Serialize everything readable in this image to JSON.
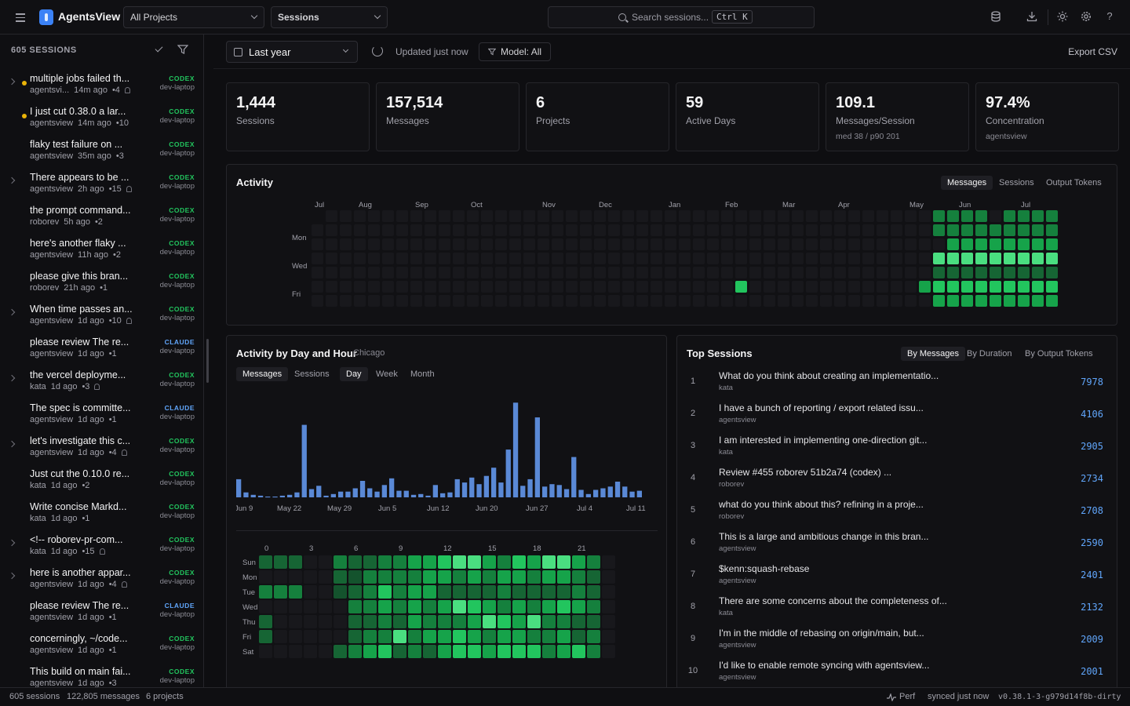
{
  "app": {
    "title": "AgentsView"
  },
  "header": {
    "project_select": "All Projects",
    "view_select": "Sessions",
    "search_placeholder": "Search sessions...",
    "search_shortcut": "Ctrl K"
  },
  "sidebar": {
    "count_label": "605 SESSIONS",
    "sessions": [
      {
        "title": "multiple jobs failed th...",
        "project": "agentsvi...",
        "age": "14m ago",
        "msgs": "•4",
        "agent": "CODEX",
        "host": "dev-laptop",
        "expand": true,
        "dot": true,
        "person": true
      },
      {
        "title": "I just cut 0.38.0 a lar...",
        "project": "agentsview",
        "age": "14m ago",
        "msgs": "•10",
        "agent": "CODEX",
        "host": "dev-laptop",
        "expand": false,
        "dot": true,
        "person": false
      },
      {
        "title": "flaky test failure on ...",
        "project": "agentsview",
        "age": "35m ago",
        "msgs": "•3",
        "agent": "CODEX",
        "host": "dev-laptop",
        "expand": false,
        "dot": false,
        "person": false
      },
      {
        "title": "There appears to be ...",
        "project": "agentsview",
        "age": "2h ago",
        "msgs": "•15",
        "agent": "CODEX",
        "host": "dev-laptop",
        "expand": true,
        "dot": false,
        "person": true
      },
      {
        "title": "the prompt command...",
        "project": "roborev",
        "age": "5h ago",
        "msgs": "•2",
        "agent": "CODEX",
        "host": "dev-laptop",
        "expand": false,
        "dot": false,
        "person": false
      },
      {
        "title": "here's another flaky ...",
        "project": "agentsview",
        "age": "11h ago",
        "msgs": "•2",
        "agent": "CODEX",
        "host": "dev-laptop",
        "expand": false,
        "dot": false,
        "person": false
      },
      {
        "title": "please give this bran...",
        "project": "roborev",
        "age": "21h ago",
        "msgs": "•1",
        "agent": "CODEX",
        "host": "dev-laptop",
        "expand": false,
        "dot": false,
        "person": false
      },
      {
        "title": "When time passes an...",
        "project": "agentsview",
        "age": "1d ago",
        "msgs": "•10",
        "agent": "CODEX",
        "host": "dev-laptop",
        "expand": true,
        "dot": false,
        "person": true
      },
      {
        "title": "please review The re...",
        "project": "agentsview",
        "age": "1d ago",
        "msgs": "•1",
        "agent": "CLAUDE",
        "host": "dev-laptop",
        "expand": false,
        "dot": false,
        "person": false
      },
      {
        "title": "the vercel deployme...",
        "project": "kata",
        "age": "1d ago",
        "msgs": "•3",
        "agent": "CODEX",
        "host": "dev-laptop",
        "expand": true,
        "dot": false,
        "person": true
      },
      {
        "title": "The spec is committe...",
        "project": "agentsview",
        "age": "1d ago",
        "msgs": "•1",
        "agent": "CLAUDE",
        "host": "dev-laptop",
        "expand": false,
        "dot": false,
        "person": false
      },
      {
        "title": "let's investigate this c...",
        "project": "agentsview",
        "age": "1d ago",
        "msgs": "•4",
        "agent": "CODEX",
        "host": "dev-laptop",
        "expand": true,
        "dot": false,
        "person": true
      },
      {
        "title": "Just cut the 0.10.0 re...",
        "project": "kata",
        "age": "1d ago",
        "msgs": "•2",
        "agent": "CODEX",
        "host": "dev-laptop",
        "expand": false,
        "dot": false,
        "person": false
      },
      {
        "title": "Write concise Markd...",
        "project": "kata",
        "age": "1d ago",
        "msgs": "•1",
        "agent": "CODEX",
        "host": "dev-laptop",
        "expand": false,
        "dot": false,
        "person": false
      },
      {
        "title": "<!-- roborev-pr-com...",
        "project": "kata",
        "age": "1d ago",
        "msgs": "•15",
        "agent": "CODEX",
        "host": "dev-laptop",
        "expand": true,
        "dot": false,
        "person": true
      },
      {
        "title": "here is another appar...",
        "project": "agentsview",
        "age": "1d ago",
        "msgs": "•4",
        "agent": "CODEX",
        "host": "dev-laptop",
        "expand": true,
        "dot": false,
        "person": true
      },
      {
        "title": "please review The re...",
        "project": "agentsview",
        "age": "1d ago",
        "msgs": "•1",
        "agent": "CLAUDE",
        "host": "dev-laptop",
        "expand": false,
        "dot": false,
        "person": false
      },
      {
        "title": "concerningly, ~/code...",
        "project": "agentsview",
        "age": "1d ago",
        "msgs": "•1",
        "agent": "CODEX",
        "host": "dev-laptop",
        "expand": false,
        "dot": false,
        "person": false
      },
      {
        "title": "This build on main fai...",
        "project": "agentsview",
        "age": "1d ago",
        "msgs": "•3",
        "agent": "CODEX",
        "host": "dev-laptop",
        "expand": false,
        "dot": false,
        "person": false
      }
    ]
  },
  "toolbar": {
    "range": "Last year",
    "updated": "Updated just now",
    "model": "Model: All",
    "export": "Export CSV"
  },
  "stats": [
    {
      "value": "1,444",
      "label": "Sessions",
      "sub": ""
    },
    {
      "value": "157,514",
      "label": "Messages",
      "sub": ""
    },
    {
      "value": "6",
      "label": "Projects",
      "sub": ""
    },
    {
      "value": "59",
      "label": "Active Days",
      "sub": ""
    },
    {
      "value": "109.1",
      "label": "Messages/Session",
      "sub": "med 38 / p90 201"
    },
    {
      "value": "97.4%",
      "label": "Concentration",
      "sub": "agentsview"
    }
  ],
  "activity": {
    "title": "Activity",
    "tabs": [
      "Messages",
      "Sessions",
      "Output Tokens"
    ],
    "active_tab": "Messages",
    "months": [
      "Jul",
      "Aug",
      "Sep",
      "Oct",
      "Nov",
      "Dec",
      "Jan",
      "Feb",
      "Mar",
      "Apr",
      "May",
      "Jun",
      "Jul"
    ],
    "days": [
      "Mon",
      "Wed",
      "Fri"
    ]
  },
  "dayhour": {
    "title": "Activity by Day and Hour",
    "tz": "Chicago",
    "metric_tabs": [
      "Messages",
      "Sessions"
    ],
    "period_tabs": [
      "Day",
      "Week",
      "Month"
    ],
    "active_metric": "Messages",
    "active_period": "Day",
    "hour_labels": [
      "0",
      "3",
      "6",
      "9",
      "12",
      "15",
      "18",
      "21"
    ],
    "day_labels": [
      "Sun",
      "Mon",
      "Tue",
      "Wed",
      "Thu",
      "Fri",
      "Sat"
    ]
  },
  "chart_data": {
    "type": "bar",
    "title": "Activity by Day and Hour",
    "x_tick_labels": [
      "Jun 9",
      "May 22",
      "May 29",
      "Jun 5",
      "Jun 12",
      "Jun 20",
      "Jun 27",
      "Jul 4",
      "Jul 11"
    ],
    "values": [
      22,
      6,
      3,
      2,
      1,
      1,
      2,
      3,
      6,
      88,
      10,
      14,
      2,
      4,
      7,
      7,
      11,
      20,
      11,
      7,
      15,
      23,
      8,
      8,
      3,
      4,
      2,
      15,
      5,
      6,
      22,
      18,
      24,
      16,
      26,
      36,
      18,
      58,
      115,
      14,
      22,
      97,
      13,
      16,
      15,
      10,
      49,
      9,
      4,
      9,
      11,
      13,
      19,
      13,
      7,
      8
    ],
    "ylim": [
      0,
      120
    ],
    "colors": {
      "bar": "#5a89d6"
    }
  },
  "top_sessions": {
    "title": "Top Sessions",
    "tabs": [
      "By Messages",
      "By Duration",
      "By Output Tokens"
    ],
    "active_tab": "By Messages",
    "rows": [
      {
        "rank": "1",
        "title": "What do you think about creating an implementatio...",
        "project": "kata",
        "count": "7978"
      },
      {
        "rank": "2",
        "title": "I have a bunch of reporting / export related issu...",
        "project": "agentsview",
        "count": "4106"
      },
      {
        "rank": "3",
        "title": "I am interested in implementing one-direction git...",
        "project": "kata",
        "count": "2905"
      },
      {
        "rank": "4",
        "title": "Review #455 roborev 51b2a74 (codex) ...",
        "project": "roborev",
        "count": "2734"
      },
      {
        "rank": "5",
        "title": "what do you think about this? refining in a proje...",
        "project": "roborev",
        "count": "2708"
      },
      {
        "rank": "6",
        "title": "This is a large and ambitious change in this bran...",
        "project": "agentsview",
        "count": "2590"
      },
      {
        "rank": "7",
        "title": "$kenn:squash-rebase",
        "project": "agentsview",
        "count": "2401"
      },
      {
        "rank": "8",
        "title": "There are some concerns about the completeness of...",
        "project": "kata",
        "count": "2132"
      },
      {
        "rank": "9",
        "title": "I'm in the middle of rebasing on origin/main, but...",
        "project": "agentsview",
        "count": "2009"
      },
      {
        "rank": "10",
        "title": "I'd like to enable remote syncing with agentsview...",
        "project": "agentsview",
        "count": "2001"
      }
    ]
  },
  "footer": {
    "sessions": "605 sessions",
    "messages": "122,805 messages",
    "projects": "6 projects",
    "perf": "Perf",
    "synced": "synced just now",
    "version": "v0.38.1-3-g979d14f8b-dirty"
  },
  "colors": {
    "codex": "#22c55e",
    "claude": "#60a5fa",
    "heat": [
      "#18181c",
      "#14532d",
      "#166534",
      "#15803d",
      "#16a34a",
      "#22c55e",
      "#4ade80"
    ]
  }
}
